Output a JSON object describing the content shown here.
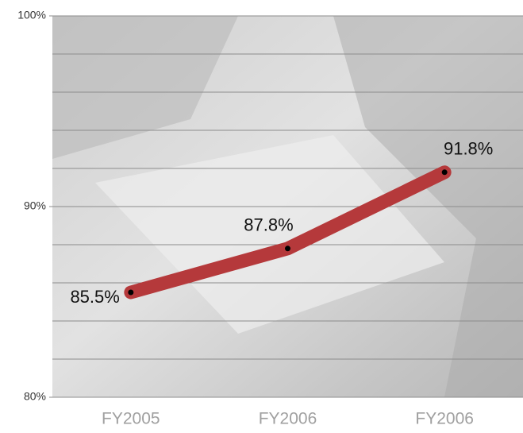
{
  "chart_data": {
    "type": "line",
    "categories": [
      "FY2005",
      "FY2006",
      "FY2006"
    ],
    "series": [
      {
        "color": "#b5393b",
        "values": [
          85.5,
          87.8,
          91.8
        ],
        "value_labels": [
          "85.5%",
          "87.8%",
          "91.8%"
        ]
      }
    ],
    "ylim": [
      80,
      100
    ],
    "yticks": [
      {
        "value": 80,
        "label": "80%"
      },
      {
        "value": 90,
        "label": "90%"
      },
      {
        "value": 100,
        "label": "100%"
      }
    ],
    "ygrid": [
      80,
      82,
      84,
      86,
      88,
      90,
      92,
      94,
      96,
      98,
      100
    ],
    "grid": true
  }
}
